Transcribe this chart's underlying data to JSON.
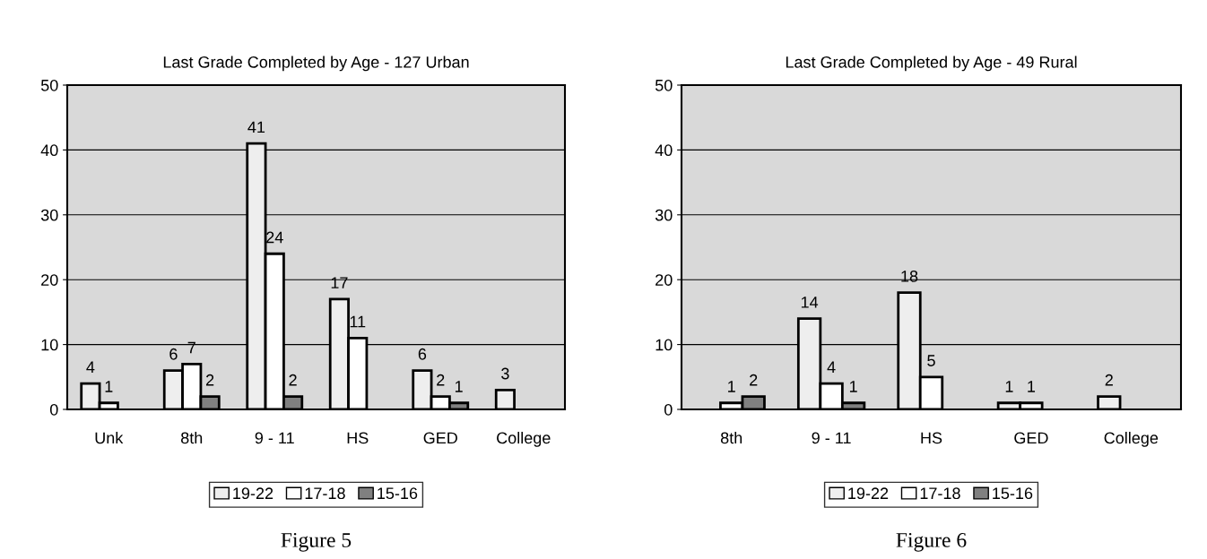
{
  "chart_data": [
    {
      "type": "bar",
      "title": "Last Grade Completed by Age - 127 Urban",
      "categories": [
        "Unk",
        "8th",
        "9 - 11",
        "HS",
        "GED",
        "College"
      ],
      "series": [
        {
          "name": "19-22",
          "color": "#eeeeee",
          "values": [
            4,
            6,
            41,
            17,
            6,
            3
          ]
        },
        {
          "name": "17-18",
          "color": "#ffffff",
          "values": [
            1,
            7,
            24,
            11,
            2,
            null
          ]
        },
        {
          "name": "15-16",
          "color": "#808080",
          "values": [
            null,
            2,
            2,
            null,
            1,
            null
          ]
        }
      ],
      "ylim": [
        0,
        50
      ],
      "yticks": [
        0,
        10,
        20,
        30,
        40,
        50
      ],
      "grid": "y",
      "legend": "bottom",
      "data_labels": true,
      "annotations": [
        "Figure 5"
      ]
    },
    {
      "type": "bar",
      "title": "Last Grade Completed by Age - 49 Rural",
      "categories": [
        "8th",
        "9 - 11",
        "HS",
        "GED",
        "College"
      ],
      "series": [
        {
          "name": "19-22",
          "color": "#eeeeee",
          "values": [
            null,
            14,
            18,
            1,
            2
          ]
        },
        {
          "name": "17-18",
          "color": "#ffffff",
          "values": [
            1,
            4,
            5,
            1,
            null
          ]
        },
        {
          "name": "15-16",
          "color": "#808080",
          "values": [
            2,
            1,
            null,
            null,
            null
          ]
        }
      ],
      "ylim": [
        0,
        50
      ],
      "yticks": [
        0,
        10,
        20,
        30,
        40,
        50
      ],
      "grid": "y",
      "legend": "bottom",
      "data_labels": true,
      "annotations": [
        "Figure 6"
      ]
    }
  ]
}
